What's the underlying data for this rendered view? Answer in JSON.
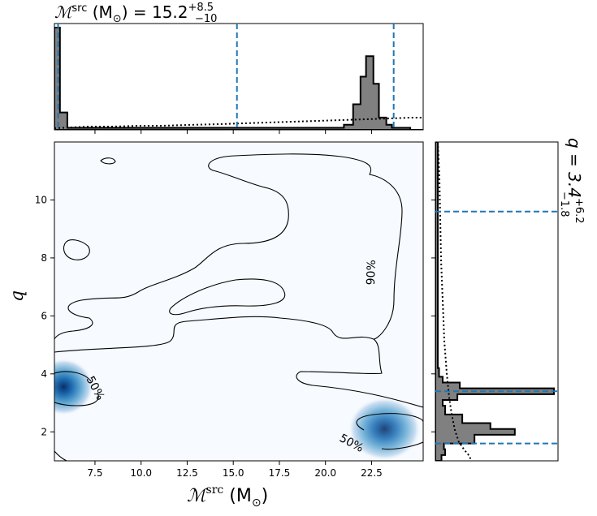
{
  "chart_data": {
    "type": "corner",
    "panels": {
      "density": {
        "xlim": [
          5.3,
          25.3
        ],
        "ylim": [
          1.0,
          12.0
        ],
        "xticks": [
          "7.5",
          "10.0",
          "12.5",
          "15.0",
          "17.5",
          "20.0",
          "22.5"
        ],
        "xtick_values": [
          7.5,
          10.0,
          12.5,
          15.0,
          17.5,
          20.0,
          22.5
        ],
        "yticks": [
          "2",
          "4",
          "6",
          "8",
          "10"
        ],
        "ytick_values": [
          2,
          4,
          6,
          8,
          10
        ],
        "blobs": [
          {
            "x": 5.8,
            "y": 3.55,
            "sx": 0.9,
            "sy": 0.45,
            "strength": 1.0
          },
          {
            "x": 23.2,
            "y": 2.1,
            "sx": 1.1,
            "sy": 0.5,
            "strength": 0.9
          }
        ],
        "contour_labels": [
          {
            "text": "50%",
            "x": 7.5,
            "y": 3.5,
            "angle": 62
          },
          {
            "text": "50%",
            "x": 21.4,
            "y": 1.6,
            "angle": 28
          },
          {
            "text": "90%",
            "x": 22.5,
            "y": 7.5,
            "angle": -88
          }
        ]
      },
      "top_hist": {
        "annotation_lhs": "ℳ",
        "annotation_sup": "src",
        "annotation_unit": "(M",
        "annotation_unit_sub": "⊙",
        "annotation_eq": ") = 15.2",
        "annotation_plus": "+8.5",
        "annotation_minus": "−10",
        "quantiles": [
          5.5,
          15.2,
          23.7
        ],
        "bins_edges": [
          5.3,
          5.6,
          6.0,
          21.0,
          21.5,
          21.9,
          22.2,
          22.6,
          22.9,
          23.3,
          23.6,
          24.6,
          25.3
        ],
        "bins_values": [
          1.0,
          0.17,
          0.02,
          0.05,
          0.25,
          0.52,
          0.72,
          0.45,
          0.12,
          0.05,
          0.02,
          0.0
        ]
      },
      "right_hist": {
        "annotation": "q = 3.4",
        "annotation_plus": "+6.2",
        "annotation_minus": "−1.8",
        "quantiles": [
          1.6,
          3.4,
          9.6
        ],
        "bins_edges": [
          1.0,
          1.2,
          1.4,
          1.6,
          1.9,
          2.1,
          2.3,
          2.6,
          2.9,
          3.1,
          3.3,
          3.5,
          3.7,
          3.9,
          4.2,
          12.0
        ],
        "bins_values": [
          0.05,
          0.08,
          0.07,
          0.32,
          0.65,
          0.45,
          0.22,
          0.08,
          0.06,
          0.18,
          0.97,
          0.2,
          0.06,
          0.03,
          0.02
        ]
      }
    },
    "xlabel": "ℳ",
    "xlabel_sup": "src",
    "xlabel_unit": "(M",
    "xlabel_unit_sub": "⊙",
    "xlabel_unit_close": ")",
    "ylabel": "q",
    "colors": {
      "quantile_line": "#1f77b4",
      "hist_fill": "#808080",
      "density_high": "#08306b",
      "density_low": "#f7fbff"
    }
  }
}
